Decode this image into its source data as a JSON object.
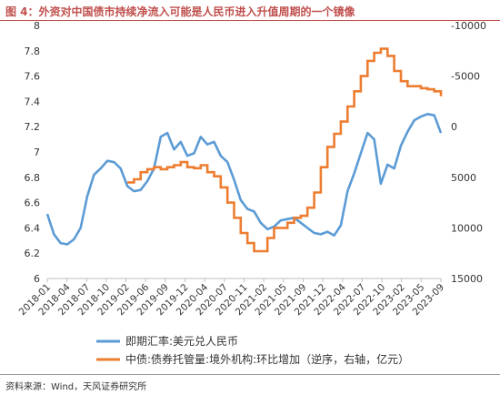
{
  "title": "图 4：外资对中国债市持续净流入可能是人民币进入升值周期的一个镜像",
  "source": "资料来源：Wind，天风证券研究所",
  "chart_data": {
    "type": "line",
    "x_ticks": [
      "2018-01",
      "2018-04",
      "2018-07",
      "2018-10",
      "2019-02",
      "2019-06",
      "2019-09",
      "2019-12",
      "2020-04",
      "2020-07",
      "2020-11",
      "2021-02",
      "2021-05",
      "2021-09",
      "2021-12",
      "2022-04",
      "2022-07",
      "2022-10",
      "2023-02",
      "2023-05",
      "2023-09"
    ],
    "left_axis": {
      "ticks": [
        "6",
        "6.2",
        "6.4",
        "6.6",
        "6.8",
        "7",
        "7.2",
        "7.4",
        "7.6",
        "7.8",
        "8"
      ],
      "range": [
        6,
        8
      ]
    },
    "right_axis": {
      "ticks": [
        "-10000",
        "-5000",
        "0",
        "5000",
        "10000",
        "15000"
      ],
      "range": [
        -10000,
        15000
      ],
      "reversed": true
    },
    "series": [
      {
        "name": "即期汇率:美元兑人民币",
        "axis": "left",
        "color": "#5b9bd5",
        "points": [
          [
            0,
            6.51
          ],
          [
            1,
            6.35
          ],
          [
            2,
            6.28
          ],
          [
            3,
            6.27
          ],
          [
            4,
            6.31
          ],
          [
            5,
            6.4
          ],
          [
            6,
            6.65
          ],
          [
            7,
            6.82
          ],
          [
            8,
            6.87
          ],
          [
            9,
            6.93
          ],
          [
            10,
            6.92
          ],
          [
            11,
            6.87
          ],
          [
            12,
            6.73
          ],
          [
            13,
            6.69
          ],
          [
            14,
            6.7
          ],
          [
            15,
            6.77
          ],
          [
            16,
            6.87
          ],
          [
            17,
            7.12
          ],
          [
            18,
            7.15
          ],
          [
            19,
            7.02
          ],
          [
            20,
            7.08
          ],
          [
            21,
            6.97
          ],
          [
            22,
            6.99
          ],
          [
            23,
            7.12
          ],
          [
            24,
            7.06
          ],
          [
            25,
            7.08
          ],
          [
            26,
            6.97
          ],
          [
            27,
            6.92
          ],
          [
            28,
            6.78
          ],
          [
            29,
            6.62
          ],
          [
            30,
            6.55
          ],
          [
            31,
            6.53
          ],
          [
            32,
            6.44
          ],
          [
            33,
            6.39
          ],
          [
            34,
            6.41
          ],
          [
            35,
            6.46
          ],
          [
            36,
            6.47
          ],
          [
            37,
            6.48
          ],
          [
            38,
            6.44
          ],
          [
            39,
            6.4
          ],
          [
            40,
            6.36
          ],
          [
            41,
            6.35
          ],
          [
            42,
            6.37
          ],
          [
            43,
            6.34
          ],
          [
            44,
            6.42
          ],
          [
            45,
            6.69
          ],
          [
            46,
            6.83
          ],
          [
            47,
            6.99
          ],
          [
            48,
            7.15
          ],
          [
            49,
            7.1
          ],
          [
            50,
            6.75
          ],
          [
            51,
            6.9
          ],
          [
            52,
            6.87
          ],
          [
            53,
            7.05
          ],
          [
            54,
            7.16
          ],
          [
            55,
            7.25
          ],
          [
            56,
            7.28
          ],
          [
            57,
            7.3
          ],
          [
            58,
            7.29
          ],
          [
            59,
            7.15
          ]
        ]
      },
      {
        "name": "中债:债券托管量:境外机构:环比增加（逆序，右轴，亿元）",
        "axis": "right",
        "color": "#ed7d31",
        "points": [
          [
            12,
            5500
          ],
          [
            13,
            5200
          ],
          [
            14,
            4500
          ],
          [
            15,
            4200
          ],
          [
            16,
            4000
          ],
          [
            17,
            4200
          ],
          [
            18,
            4000
          ],
          [
            19,
            3800
          ],
          [
            20,
            3500
          ],
          [
            21,
            4000
          ],
          [
            22,
            4100
          ],
          [
            23,
            3800
          ],
          [
            24,
            4500
          ],
          [
            25,
            4900
          ],
          [
            26,
            6000
          ],
          [
            27,
            7500
          ],
          [
            28,
            9000
          ],
          [
            29,
            10500
          ],
          [
            30,
            11500
          ],
          [
            31,
            12300
          ],
          [
            32,
            12300
          ],
          [
            33,
            11000
          ],
          [
            34,
            10000
          ],
          [
            35,
            10000
          ],
          [
            36,
            9500
          ],
          [
            37,
            9000
          ],
          [
            38,
            8800
          ],
          [
            39,
            8000
          ],
          [
            40,
            6500
          ],
          [
            41,
            4000
          ],
          [
            42,
            2000
          ],
          [
            43,
            700
          ],
          [
            44,
            -500
          ],
          [
            45,
            -2000
          ],
          [
            46,
            -3500
          ],
          [
            47,
            -5000
          ],
          [
            48,
            -6500
          ],
          [
            49,
            -7300
          ],
          [
            50,
            -7700
          ],
          [
            51,
            -7000
          ],
          [
            52,
            -5500
          ],
          [
            53,
            -4500
          ],
          [
            54,
            -4000
          ],
          [
            55,
            -4000
          ],
          [
            56,
            -3800
          ],
          [
            57,
            -3700
          ],
          [
            58,
            -3500
          ],
          [
            59,
            -3000
          ]
        ]
      }
    ],
    "n_points": 60,
    "grid": false,
    "legend_position": "bottom"
  }
}
